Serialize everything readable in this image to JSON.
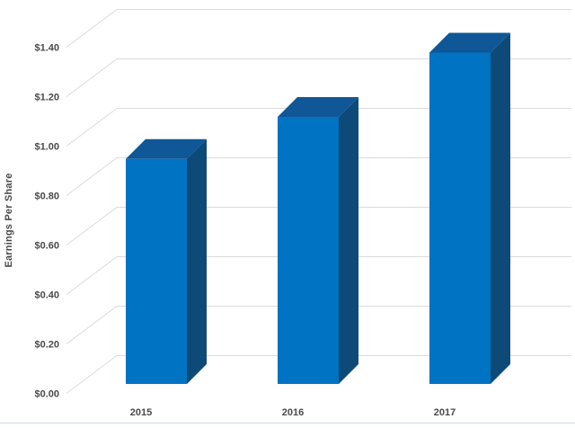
{
  "chart_data": {
    "type": "bar",
    "projection": "3d",
    "title": "",
    "xlabel": "",
    "ylabel": "Earnings Per Share",
    "categories": [
      "2015",
      "2016",
      "2017"
    ],
    "values": [
      0.91,
      1.08,
      1.34
    ],
    "ylim": [
      0,
      1.4
    ],
    "ytick_interval": 0.2,
    "ytick_labels": [
      "$0.00",
      "$0.20",
      "$0.40",
      "$0.60",
      "$0.80",
      "$1.00",
      "$1.20",
      "$1.40"
    ],
    "grid": true,
    "legend": "none",
    "colors": {
      "bar_front": "#0173c3",
      "bar_top": "#0f5796",
      "bar_side": "#0d4a78",
      "gridline": "#dbdbdb",
      "text": "#4a4a4a",
      "bottom_border": "#d9e2ea",
      "background": "#ffffff"
    }
  }
}
